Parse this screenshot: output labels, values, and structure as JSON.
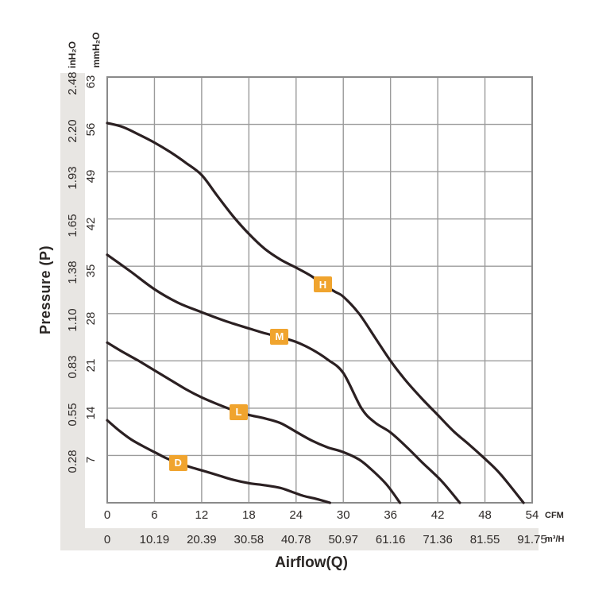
{
  "chart_data": {
    "type": "line",
    "title": "",
    "x_axis": {
      "label": "Airflow(Q)",
      "range": [
        0,
        54
      ],
      "grid": true,
      "primary": {
        "unit": "CFM",
        "ticks": [
          "0",
          "6",
          "12",
          "18",
          "24",
          "30",
          "36",
          "42",
          "48",
          "54"
        ]
      },
      "secondary": {
        "unit": "m³/H",
        "ticks": [
          "0",
          "10.19",
          "20.39",
          "30.58",
          "40.78",
          "50.97",
          "61.16",
          "71.36",
          "81.55",
          "91.75"
        ]
      }
    },
    "y_axis": {
      "label": "Pressure (P)",
      "range": [
        0,
        63
      ],
      "grid": true,
      "primary": {
        "unit": "mmH₂O",
        "ticks": [
          "63",
          "56",
          "49",
          "42",
          "35",
          "28",
          "21",
          "14",
          "7"
        ],
        "tick_values": [
          63,
          56,
          49,
          42,
          35,
          28,
          21,
          14,
          7
        ]
      },
      "secondary": {
        "unit": "inH₂O",
        "ticks": [
          "2.48",
          "2.20",
          "1.93",
          "1.65",
          "1.38",
          "1.10",
          "0.83",
          "0.55",
          "0.28"
        ]
      }
    },
    "series": [
      {
        "name": "H",
        "badge": {
          "label": "H",
          "x": 27.4,
          "y": 32.3
        },
        "points": [
          [
            0,
            56.2
          ],
          [
            2,
            55.6
          ],
          [
            4,
            54.5
          ],
          [
            6,
            53.3
          ],
          [
            8,
            51.9
          ],
          [
            10,
            50.3
          ],
          [
            12,
            48.5
          ],
          [
            14,
            45.4
          ],
          [
            16,
            42.4
          ],
          [
            18,
            39.8
          ],
          [
            20,
            37.6
          ],
          [
            22,
            36.0
          ],
          [
            24,
            34.8
          ],
          [
            26,
            33.5
          ],
          [
            27.4,
            32.3
          ],
          [
            29,
            31.2
          ],
          [
            30,
            30.5
          ],
          [
            32,
            28.0
          ],
          [
            34,
            24.5
          ],
          [
            36,
            21.0
          ],
          [
            38,
            18.0
          ],
          [
            40,
            15.4
          ],
          [
            42,
            13.0
          ],
          [
            44,
            10.6
          ],
          [
            46,
            8.6
          ],
          [
            48,
            6.5
          ],
          [
            50,
            4.2
          ],
          [
            52.9,
            0
          ]
        ]
      },
      {
        "name": "M",
        "badge": {
          "label": "M",
          "x": 21.9,
          "y": 24.6
        },
        "points": [
          [
            0,
            36.7
          ],
          [
            3,
            34.2
          ],
          [
            6,
            31.6
          ],
          [
            9,
            29.6
          ],
          [
            12,
            28.2
          ],
          [
            15,
            26.9
          ],
          [
            18,
            25.8
          ],
          [
            20,
            25.1
          ],
          [
            22,
            24.5
          ],
          [
            24,
            23.8
          ],
          [
            26,
            22.7
          ],
          [
            28,
            21.2
          ],
          [
            30,
            19.2
          ],
          [
            32.3,
            14.0
          ],
          [
            34,
            11.9
          ],
          [
            36,
            10.4
          ],
          [
            38,
            8.3
          ],
          [
            40,
            6.0
          ],
          [
            42.5,
            3.2
          ],
          [
            44.8,
            0
          ]
        ]
      },
      {
        "name": "L",
        "badge": {
          "label": "L",
          "x": 16.7,
          "y": 13.4
        },
        "points": [
          [
            0,
            23.7
          ],
          [
            2,
            22.3
          ],
          [
            4,
            21.0
          ],
          [
            6,
            19.6
          ],
          [
            8,
            18.2
          ],
          [
            10,
            16.8
          ],
          [
            12,
            15.6
          ],
          [
            14,
            14.6
          ],
          [
            16,
            13.7
          ],
          [
            18,
            13.0
          ],
          [
            20,
            12.5
          ],
          [
            22,
            11.8
          ],
          [
            24,
            10.5
          ],
          [
            26,
            9.2
          ],
          [
            28,
            8.2
          ],
          [
            30,
            7.5
          ],
          [
            32,
            6.4
          ],
          [
            33.5,
            5.0
          ],
          [
            35.5,
            2.7
          ],
          [
            37.2,
            0
          ]
        ]
      },
      {
        "name": "D",
        "badge": {
          "label": "D",
          "x": 9.0,
          "y": 5.9
        },
        "points": [
          [
            0,
            12.2
          ],
          [
            1.5,
            10.7
          ],
          [
            3,
            9.4
          ],
          [
            4.5,
            8.4
          ],
          [
            6,
            7.5
          ],
          [
            7.5,
            6.6
          ],
          [
            9,
            5.9
          ],
          [
            10.5,
            5.3
          ],
          [
            12,
            4.8
          ],
          [
            14,
            4.1
          ],
          [
            16,
            3.4
          ],
          [
            18,
            2.9
          ],
          [
            20,
            2.6
          ],
          [
            22,
            2.2
          ],
          [
            23.5,
            1.6
          ],
          [
            25,
            1.0
          ],
          [
            26.5,
            0.6
          ],
          [
            28.3,
            0
          ]
        ]
      }
    ],
    "colors": {
      "curve": "#2b2022",
      "badge_bg": "#f0a42e",
      "badge_text": "#ffffff",
      "grid": "#9b9b9b",
      "border": "#8a8a8a",
      "strip_bg": "#e8e6e3",
      "text": "#2b2725"
    }
  }
}
